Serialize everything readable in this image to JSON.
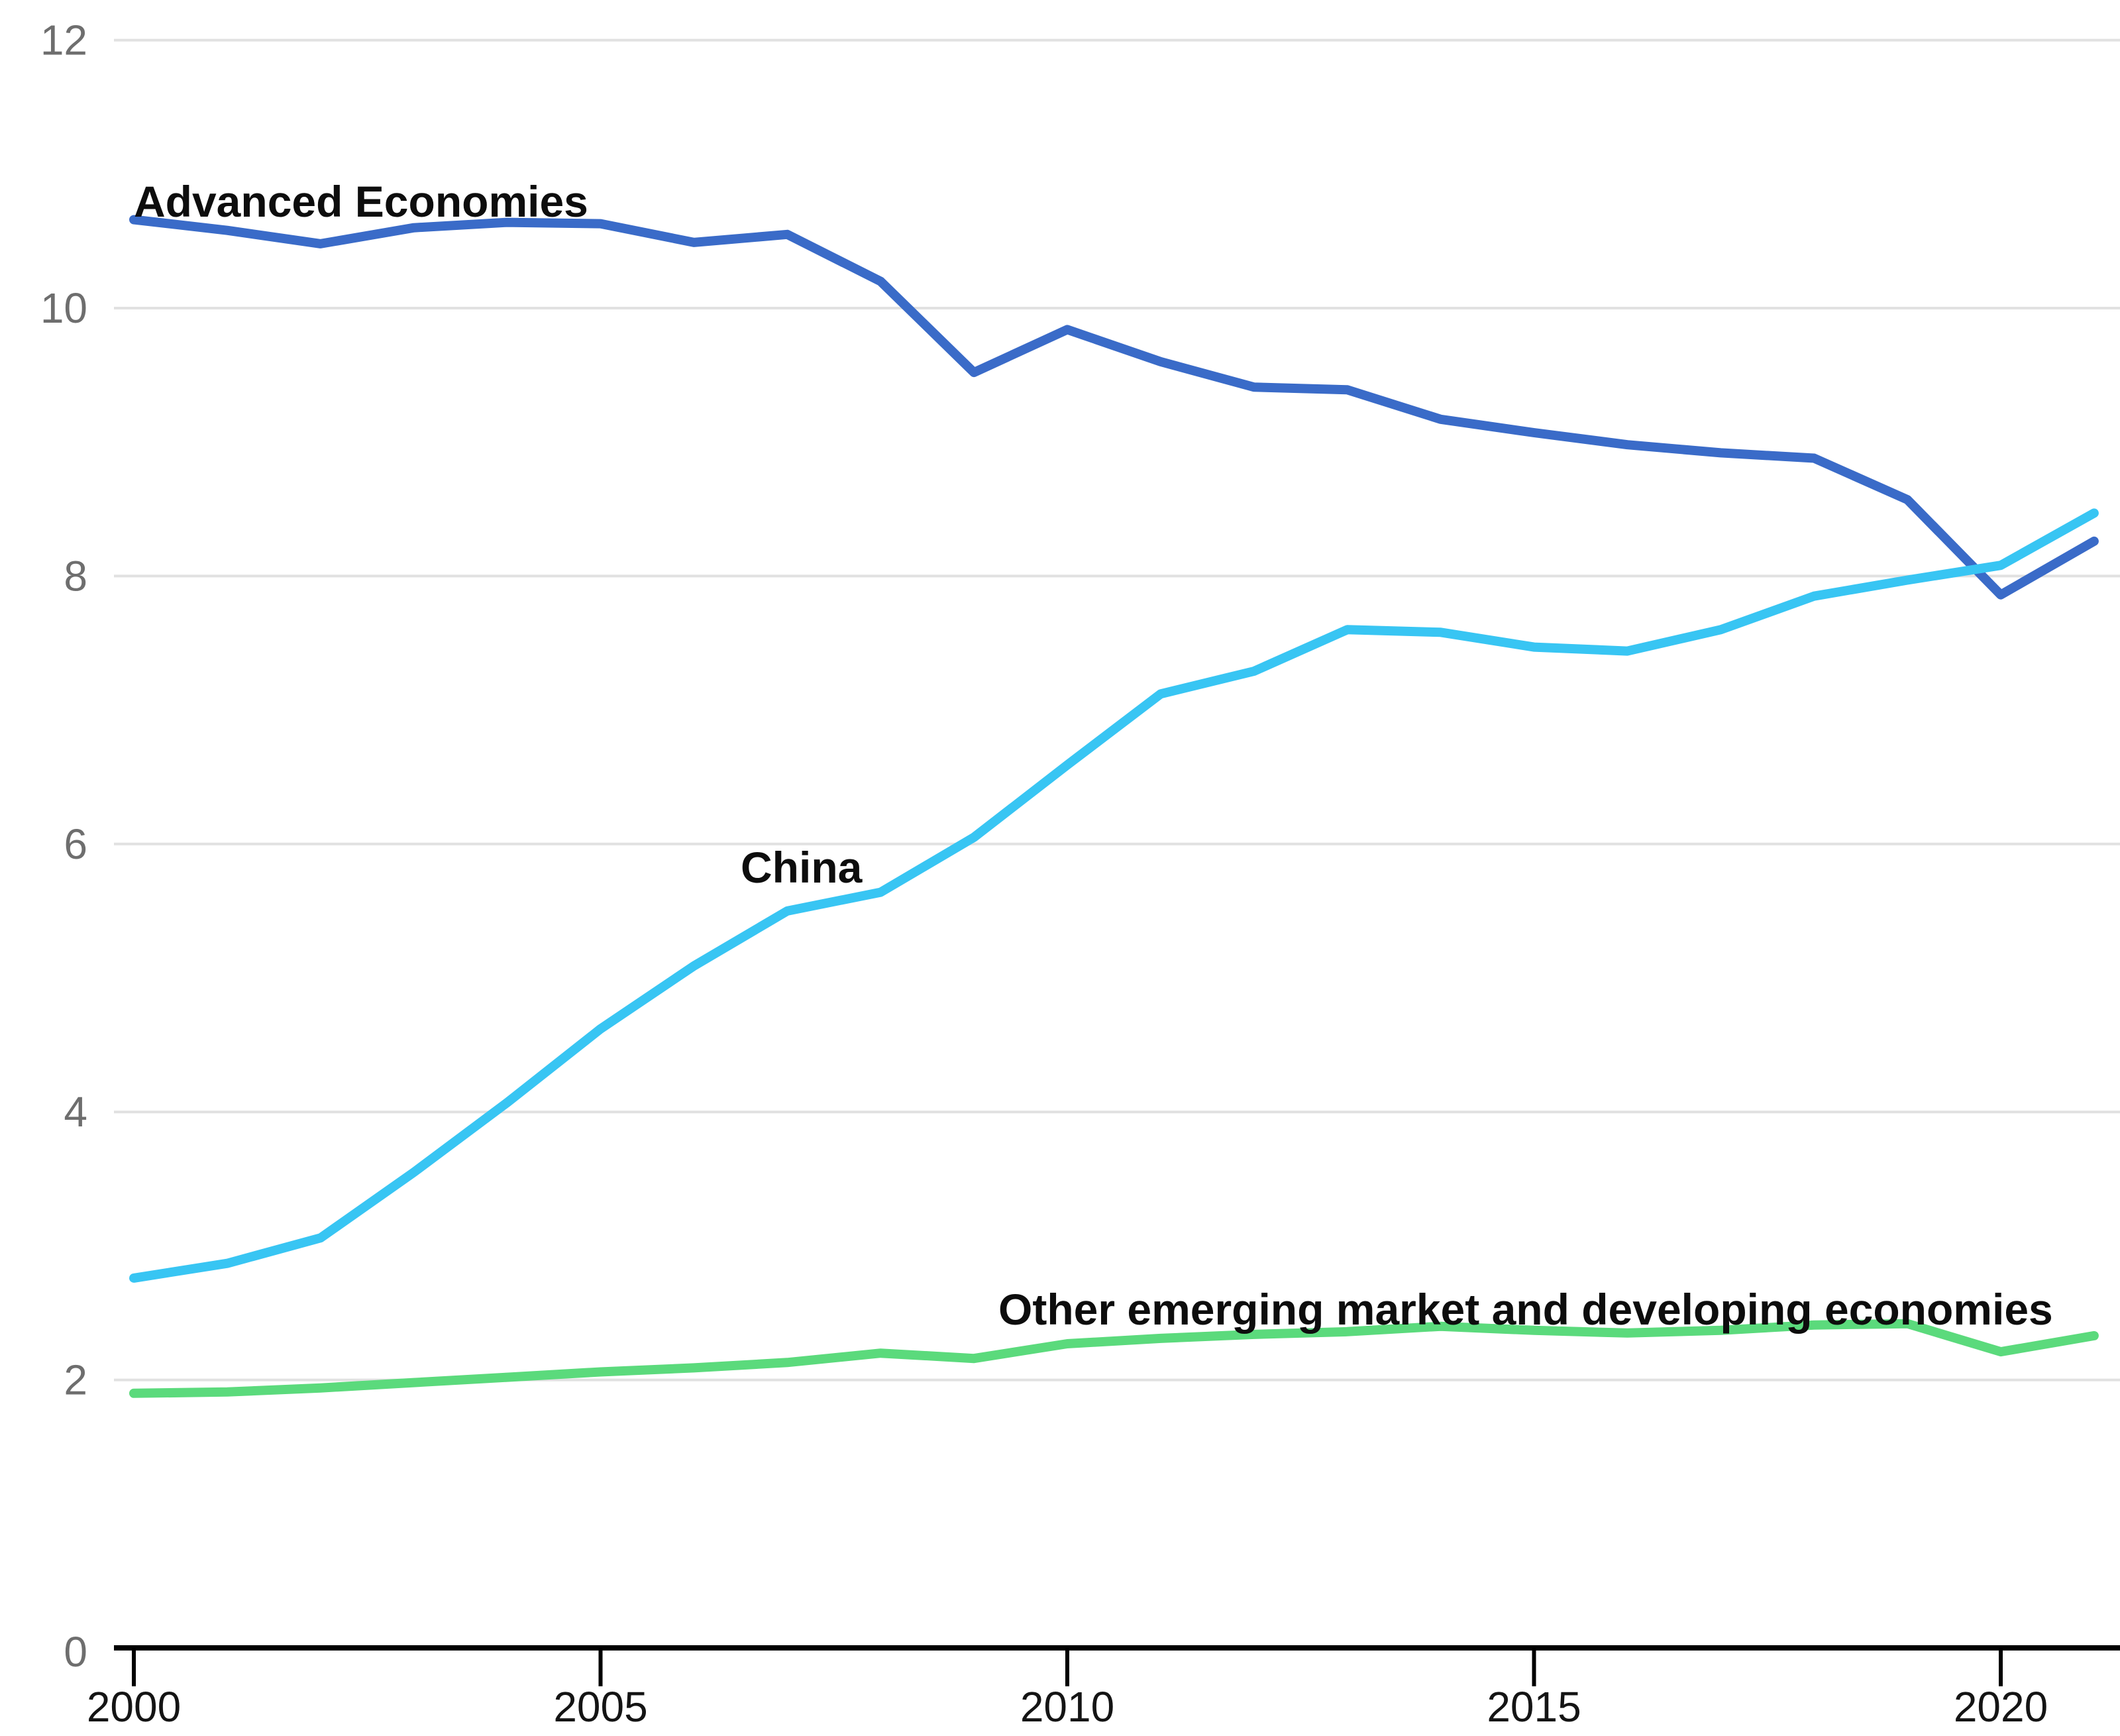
{
  "chart_data": {
    "type": "line",
    "title": "",
    "grid": true,
    "legend_position": "inline-labels-on-lines",
    "x": [
      2000,
      2001,
      2002,
      2003,
      2004,
      2005,
      2006,
      2007,
      2008,
      2009,
      2010,
      2011,
      2012,
      2013,
      2014,
      2015,
      2016,
      2017,
      2018,
      2019,
      2020,
      2021
    ],
    "xticks": [
      2000,
      2005,
      2010,
      2015,
      2020
    ],
    "xtick_labels": [
      "2000",
      "2005",
      "2010",
      "2015",
      "2020"
    ],
    "yticks": [
      0,
      2,
      4,
      6,
      8,
      10,
      12
    ],
    "ytick_labels": [
      "0",
      "2",
      "4",
      "6",
      "8",
      "10",
      "12"
    ],
    "ylim": [
      0,
      12
    ],
    "xlabel": "",
    "ylabel": "",
    "series": [
      {
        "name": "Advanced Economies",
        "color": "#3a6bc8",
        "values": [
          10.66,
          10.58,
          10.48,
          10.6,
          10.64,
          10.63,
          10.49,
          10.55,
          10.2,
          9.52,
          9.84,
          9.6,
          9.41,
          9.39,
          9.17,
          9.07,
          8.98,
          8.92,
          8.88,
          8.57,
          7.86,
          8.26
        ]
      },
      {
        "name": "China",
        "color": "#38c5f3",
        "values": [
          2.76,
          2.87,
          3.06,
          3.55,
          4.07,
          4.62,
          5.09,
          5.5,
          5.64,
          6.05,
          6.59,
          7.12,
          7.29,
          7.6,
          7.58,
          7.47,
          7.44,
          7.6,
          7.85,
          7.97,
          8.08,
          8.47
        ]
      },
      {
        "name": "Other emerging market and developing economies",
        "color": "#5bda7c",
        "values": [
          1.9,
          1.91,
          1.94,
          1.98,
          2.02,
          2.06,
          2.09,
          2.13,
          2.2,
          2.16,
          2.27,
          2.31,
          2.34,
          2.36,
          2.4,
          2.37,
          2.35,
          2.37,
          2.41,
          2.42,
          2.21,
          2.33
        ]
      }
    ]
  },
  "colors": {
    "background": "#ffffff",
    "gridline": "#e1e1e1",
    "axis": "#000000",
    "ytick_text": "#6e6e6e",
    "xtick_text": "#141414",
    "series_label_text": "#0d0d0d"
  }
}
